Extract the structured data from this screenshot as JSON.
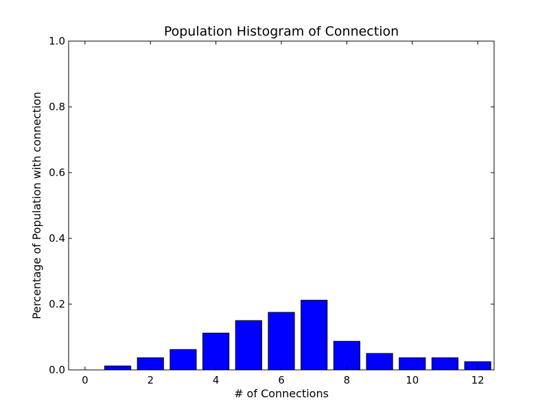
{
  "chart_data": {
    "type": "bar",
    "title": "Population Histogram of Connection",
    "xlabel": "# of Connections",
    "ylabel": "Percentage of Population with connection",
    "x": [
      0,
      1,
      2,
      3,
      4,
      5,
      6,
      7,
      8,
      9,
      10,
      11,
      12
    ],
    "values": [
      0.0,
      0.012,
      0.037,
      0.062,
      0.112,
      0.15,
      0.175,
      0.212,
      0.087,
      0.05,
      0.037,
      0.037,
      0.025
    ],
    "xlim": [
      -0.5,
      12.5
    ],
    "ylim": [
      0,
      1.0
    ],
    "xticks": [
      "0",
      "2",
      "4",
      "6",
      "8",
      "10",
      "12"
    ],
    "yticks": [
      "0.0",
      "0.2",
      "0.4",
      "0.6",
      "0.8",
      "1.0"
    ],
    "bar_color": "#0000ff",
    "grid": false
  }
}
